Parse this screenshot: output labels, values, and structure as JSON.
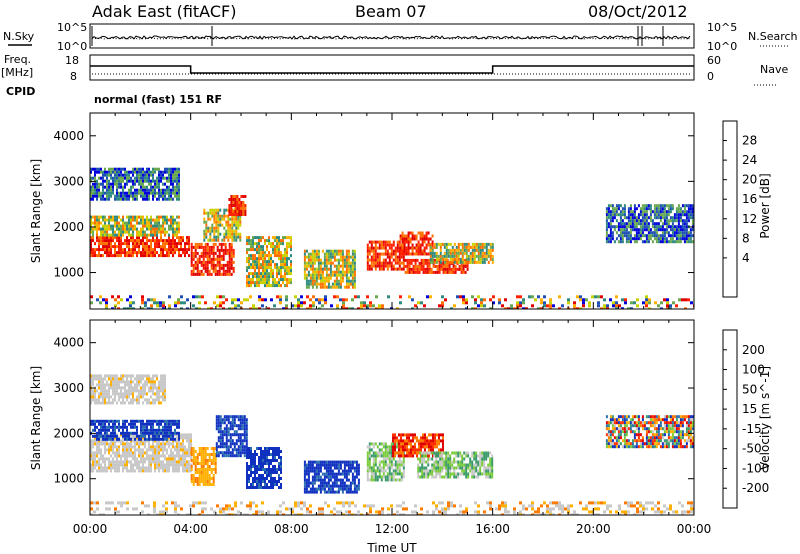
{
  "header": {
    "station": "Adak East (fitACF)",
    "beam": "Beam 07",
    "date": "08/Oct/2012"
  },
  "status_panels": {
    "nsky_label": "N.Sky",
    "nsearch_label": "N.Search",
    "noise_ticks": [
      "10^5",
      "10^0"
    ],
    "freq_label_1": "Freq.",
    "freq_label_2": "[MHz]",
    "freq_ticks": [
      "18",
      "8"
    ],
    "nave_label": "Nave",
    "nave_ticks": [
      "60",
      "0"
    ],
    "cpid_label": "CPID",
    "cpid_text": "normal (fast) 151 RF"
  },
  "chart_data": [
    {
      "type": "heatmap",
      "name": "power",
      "xlabel": "Time UT",
      "ylabel": "Slant Range [km]",
      "x_ticks": [
        "00:00",
        "04:00",
        "08:00",
        "12:00",
        "16:00",
        "20:00",
        "00:00"
      ],
      "xlim_hours": [
        0,
        24
      ],
      "ylim": [
        200,
        4500
      ],
      "y_ticks": [
        1000,
        2000,
        3000,
        4000
      ],
      "colorbar": {
        "label": "Power [dB]",
        "ticks": [
          "28",
          "24",
          "20",
          "16",
          "12",
          "8",
          "4"
        ],
        "colors": [
          "#0000dc",
          "#1f4fb4",
          "#2f8a80",
          "#6aa84f",
          "#c8d200",
          "#ffb000",
          "#ff7000",
          "#ff2000",
          "#e00000"
        ],
        "range": [
          0,
          32
        ]
      },
      "regions": [
        {
          "t": [
            0.0,
            3.9
          ],
          "r": [
            1350,
            1800
          ],
          "level": "high"
        },
        {
          "t": [
            0.0,
            3.5
          ],
          "r": [
            1850,
            2250
          ],
          "level": "medium"
        },
        {
          "t": [
            0.0,
            3.5
          ],
          "r": [
            2600,
            3300
          ],
          "level": "low"
        },
        {
          "t": [
            4.0,
            5.7
          ],
          "r": [
            950,
            1650
          ],
          "level": "high"
        },
        {
          "t": [
            4.5,
            6.0
          ],
          "r": [
            1700,
            2400
          ],
          "level": "medium"
        },
        {
          "t": [
            5.5,
            6.2
          ],
          "r": [
            2300,
            2700
          ],
          "level": "high"
        },
        {
          "t": [
            6.2,
            8.0
          ],
          "r": [
            700,
            1800
          ],
          "level": "medium"
        },
        {
          "t": [
            8.5,
            10.5
          ],
          "r": [
            700,
            1500
          ],
          "level": "medium"
        },
        {
          "t": [
            11.0,
            12.5
          ],
          "r": [
            1050,
            1700
          ],
          "level": "high"
        },
        {
          "t": [
            12.3,
            13.6
          ],
          "r": [
            1400,
            1900
          ],
          "level": "high"
        },
        {
          "t": [
            12.5,
            15.0
          ],
          "r": [
            1000,
            1300
          ],
          "level": "high"
        },
        {
          "t": [
            13.5,
            16.0
          ],
          "r": [
            1200,
            1650
          ],
          "level": "medium"
        },
        {
          "t": [
            20.5,
            24.0
          ],
          "r": [
            1700,
            2500
          ],
          "level": "low"
        },
        {
          "t": [
            0.0,
            24.0
          ],
          "r": [
            200,
            500
          ],
          "level": "noise"
        }
      ]
    },
    {
      "type": "heatmap",
      "name": "velocity",
      "xlabel": "Time UT",
      "ylabel": "Slant Range [km]",
      "x_ticks": [
        "00:00",
        "04:00",
        "08:00",
        "12:00",
        "16:00",
        "20:00",
        "00:00"
      ],
      "xlim_hours": [
        0,
        24
      ],
      "ylim": [
        200,
        4500
      ],
      "y_ticks": [
        1000,
        2000,
        3000,
        4000
      ],
      "colorbar": {
        "label": "Velocity [m s^-1]",
        "ticks": [
          "200",
          "100",
          "50",
          "15",
          "-15",
          "-50",
          "-100",
          "-200"
        ],
        "colors": [
          "#1030c0",
          "#2a6fb0",
          "#3a9a6a",
          "#7acc3a",
          "#c8c8c8",
          "#ffb000",
          "#ff7a00",
          "#ff3000",
          "#e00000"
        ],
        "range": [
          -250,
          250
        ]
      },
      "regions": [
        {
          "t": [
            0.0,
            4.0
          ],
          "r": [
            1200,
            2000
          ],
          "level": "ground"
        },
        {
          "t": [
            0.0,
            3.5
          ],
          "r": [
            1900,
            2300
          ],
          "level": "toward"
        },
        {
          "t": [
            0.0,
            3.0
          ],
          "r": [
            2700,
            3300
          ],
          "level": "ground"
        },
        {
          "t": [
            4.0,
            5.0
          ],
          "r": [
            900,
            1700
          ],
          "level": "away"
        },
        {
          "t": [
            5.0,
            6.2
          ],
          "r": [
            1500,
            2400
          ],
          "level": "toward"
        },
        {
          "t": [
            6.2,
            7.6
          ],
          "r": [
            800,
            1700
          ],
          "level": "toward"
        },
        {
          "t": [
            8.5,
            10.7
          ],
          "r": [
            700,
            1400
          ],
          "level": "toward"
        },
        {
          "t": [
            11.0,
            12.5
          ],
          "r": [
            1000,
            1800
          ],
          "level": "slow-toward"
        },
        {
          "t": [
            12.0,
            14.0
          ],
          "r": [
            1500,
            2000
          ],
          "level": "away-strong"
        },
        {
          "t": [
            13.0,
            16.0
          ],
          "r": [
            1050,
            1600
          ],
          "level": "slow-toward"
        },
        {
          "t": [
            20.5,
            24.0
          ],
          "r": [
            1700,
            2400
          ],
          "level": "mixed"
        },
        {
          "t": [
            0.0,
            24.0
          ],
          "r": [
            200,
            500
          ],
          "level": "noise"
        }
      ]
    }
  ]
}
